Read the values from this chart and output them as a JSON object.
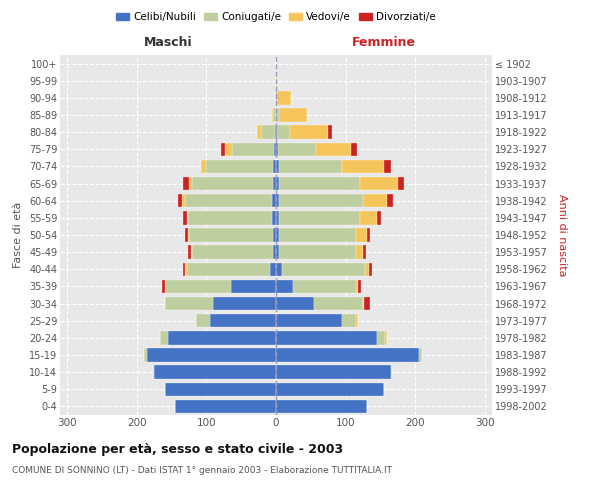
{
  "age_groups": [
    "0-4",
    "5-9",
    "10-14",
    "15-19",
    "20-24",
    "25-29",
    "30-34",
    "35-39",
    "40-44",
    "45-49",
    "50-54",
    "55-59",
    "60-64",
    "65-69",
    "70-74",
    "75-79",
    "80-84",
    "85-89",
    "90-94",
    "95-99",
    "100+"
  ],
  "birth_years": [
    "1998-2002",
    "1993-1997",
    "1988-1992",
    "1983-1987",
    "1978-1982",
    "1973-1977",
    "1968-1972",
    "1963-1967",
    "1958-1962",
    "1953-1957",
    "1948-1952",
    "1943-1947",
    "1938-1942",
    "1933-1937",
    "1928-1932",
    "1923-1927",
    "1918-1922",
    "1913-1917",
    "1908-1912",
    "1903-1907",
    "≤ 1902"
  ],
  "maschi": {
    "celibi": [
      145,
      160,
      175,
      185,
      155,
      95,
      90,
      65,
      8,
      5,
      5,
      6,
      6,
      5,
      5,
      3,
      2,
      0,
      0,
      0,
      0
    ],
    "coniugati": [
      0,
      0,
      2,
      5,
      12,
      20,
      70,
      95,
      120,
      115,
      120,
      120,
      125,
      115,
      95,
      60,
      20,
      4,
      2,
      0,
      0
    ],
    "vedovi": [
      0,
      0,
      0,
      0,
      0,
      0,
      0,
      0,
      2,
      2,
      2,
      2,
      4,
      5,
      8,
      10,
      5,
      2,
      0,
      0,
      0
    ],
    "divorziati": [
      0,
      0,
      0,
      0,
      0,
      0,
      0,
      4,
      4,
      5,
      4,
      6,
      6,
      8,
      0,
      6,
      0,
      0,
      0,
      0,
      0
    ]
  },
  "femmine": {
    "nubili": [
      130,
      155,
      165,
      205,
      145,
      95,
      55,
      25,
      8,
      5,
      5,
      5,
      5,
      5,
      5,
      3,
      2,
      0,
      0,
      0,
      0
    ],
    "coniugate": [
      0,
      0,
      2,
      5,
      12,
      20,
      70,
      90,
      120,
      110,
      110,
      115,
      120,
      115,
      90,
      55,
      18,
      5,
      2,
      0,
      0
    ],
    "vedove": [
      0,
      0,
      0,
      0,
      2,
      2,
      2,
      2,
      5,
      10,
      15,
      25,
      35,
      55,
      60,
      50,
      55,
      40,
      20,
      2,
      0
    ],
    "divorziate": [
      0,
      0,
      0,
      0,
      0,
      0,
      8,
      5,
      5,
      4,
      5,
      5,
      8,
      8,
      10,
      8,
      5,
      0,
      0,
      0,
      0
    ]
  },
  "colors": {
    "celibi": "#4472C4",
    "coniugati": "#BFCE9E",
    "vedovi": "#F5C55C",
    "divorziati": "#CC2222"
  },
  "title": "Popolazione per età, sesso e stato civile - 2003",
  "subtitle": "COMUNE DI SONNINO (LT) - Dati ISTAT 1° gennaio 2003 - Elaborazione TUTTITALIA.IT",
  "xlabel_left": "Maschi",
  "xlabel_right": "Femmine",
  "ylabel_left": "Fasce di età",
  "ylabel_right": "Anni di nascita",
  "xlim": 310,
  "bg_color": "#ffffff",
  "plot_bg_color": "#e8e8e8",
  "grid_color": "#ffffff",
  "legend_labels": [
    "Celibi/Nubili",
    "Coniugati/e",
    "Vedovi/e",
    "Divorziati/e"
  ]
}
